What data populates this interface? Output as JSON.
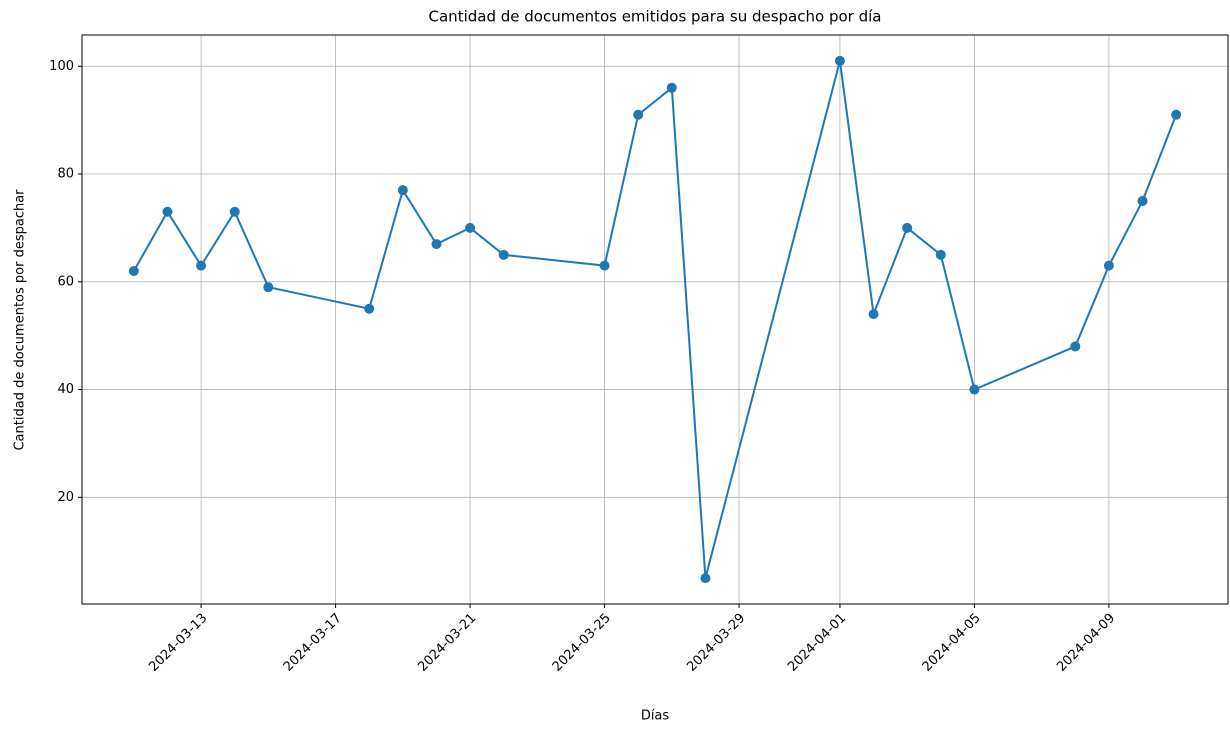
{
  "chart_data": {
    "type": "line",
    "title": "Cantidad de documentos emitidos para su despacho por día",
    "xlabel": "Días",
    "ylabel": "Cantidad de documentos por despachar",
    "x": [
      "2024-03-11",
      "2024-03-12",
      "2024-03-13",
      "2024-03-14",
      "2024-03-15",
      "2024-03-18",
      "2024-03-19",
      "2024-03-20",
      "2024-03-21",
      "2024-03-22",
      "2024-03-25",
      "2024-03-26",
      "2024-03-27",
      "2024-03-28",
      "2024-04-01",
      "2024-04-02",
      "2024-04-03",
      "2024-04-04",
      "2024-04-05",
      "2024-04-08",
      "2024-04-09",
      "2024-04-10",
      "2024-04-11"
    ],
    "values": [
      62,
      73,
      63,
      73,
      59,
      55,
      77,
      67,
      70,
      65,
      63,
      91,
      96,
      5,
      101,
      54,
      70,
      65,
      40,
      48,
      63,
      75,
      91
    ],
    "color": "#1f77b4",
    "xlim": [
      "2024-03-09T11:00",
      "2024-04-12T13:00"
    ],
    "xticks": [
      "2024-03-13",
      "2024-03-17",
      "2024-03-21",
      "2024-03-25",
      "2024-03-29",
      "2024-04-01",
      "2024-04-05",
      "2024-04-09"
    ],
    "ylim": [
      0.2,
      105.8
    ],
    "yticks": [
      20,
      40,
      60,
      80,
      100
    ],
    "grid": true
  }
}
